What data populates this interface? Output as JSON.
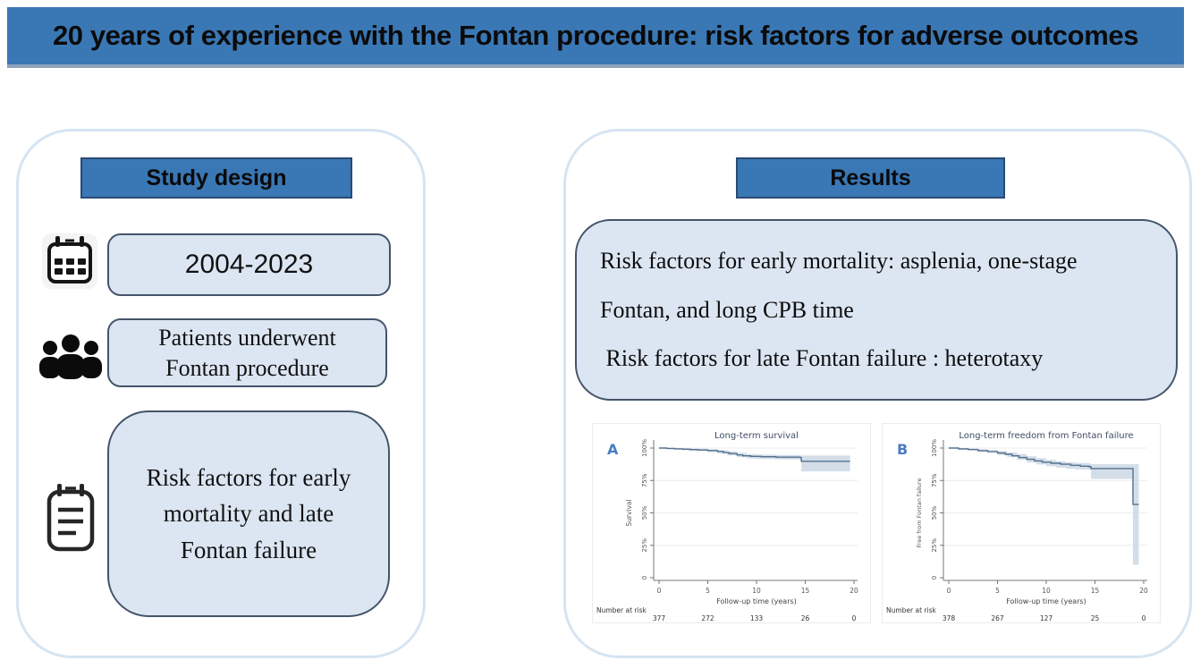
{
  "banner": {
    "title": "20 years of experience with the Fontan procedure: risk factors for adverse outcomes"
  },
  "panels": {
    "study_design": {
      "header": "Study design",
      "items": [
        {
          "icon": "calendar-icon",
          "text": "2004-2023"
        },
        {
          "icon": "people-icon",
          "text": "Patients underwent Fontan procedure"
        },
        {
          "icon": "clipboard-icon",
          "text": "Risk factors for early mortality and late Fontan failure"
        }
      ]
    },
    "results": {
      "header": "Results",
      "text_lines": [
        "Risk factors for early mortality: asplenia, one-stage",
        "Fontan, and long CPB time",
        " Risk factors for late Fontan failure : heterotaxy"
      ]
    }
  },
  "chart_data": [
    {
      "type": "line",
      "variant": "kaplan-meier-step",
      "panel_label": "A",
      "title": "Long-term survival",
      "xlabel": "Follow-up time (years)",
      "ylabel": "Survival",
      "xlim": [
        0,
        20
      ],
      "ylim": [
        0,
        105
      ],
      "xticks": [
        0,
        5,
        10,
        15,
        20
      ],
      "yticks": [
        {
          "v": 0,
          "label": "0"
        },
        {
          "v": 25,
          "label": "25%"
        },
        {
          "v": 50,
          "label": "50%"
        },
        {
          "v": 75,
          "label": "75%"
        },
        {
          "v": 100,
          "label": "100%"
        }
      ],
      "grid": "horizontal",
      "number_at_risk_label": "Number at risk",
      "number_at_risk": [
        377,
        272,
        133,
        26,
        0
      ],
      "survival_steps": [
        [
          0,
          100
        ],
        [
          0.8,
          99.7
        ],
        [
          1.6,
          99.4
        ],
        [
          2.4,
          99.1
        ],
        [
          3.2,
          98.8
        ],
        [
          4,
          98.5
        ],
        [
          5,
          98.1
        ],
        [
          6,
          97.4
        ],
        [
          6.6,
          96.5
        ],
        [
          7.2,
          95.7
        ],
        [
          8,
          94.7
        ],
        [
          8.6,
          94.0
        ],
        [
          9.4,
          93.6
        ],
        [
          10.5,
          93.3
        ],
        [
          12,
          93.0
        ],
        [
          14.4,
          92.8
        ],
        [
          14.6,
          89.8
        ],
        [
          19.6,
          89.8
        ]
      ],
      "ci_upper": [
        [
          0,
          100
        ],
        [
          2,
          100
        ],
        [
          3,
          99.6
        ],
        [
          5,
          99.0
        ],
        [
          6,
          98.4
        ],
        [
          7,
          97.4
        ],
        [
          8,
          96.4
        ],
        [
          9,
          95.4
        ],
        [
          10,
          94.9
        ],
        [
          12,
          94.7
        ],
        [
          14.4,
          94.5
        ],
        [
          14.6,
          94.2
        ],
        [
          19.6,
          94.2
        ]
      ],
      "ci_lower": [
        [
          0,
          100
        ],
        [
          1,
          99.0
        ],
        [
          3,
          97.8
        ],
        [
          5,
          96.8
        ],
        [
          6,
          95.8
        ],
        [
          7,
          94.3
        ],
        [
          8,
          92.9
        ],
        [
          9,
          92.0
        ],
        [
          10,
          91.5
        ],
        [
          12,
          91.2
        ],
        [
          14.4,
          91.0
        ],
        [
          14.6,
          82.0
        ],
        [
          19.6,
          82.0
        ]
      ]
    },
    {
      "type": "line",
      "variant": "kaplan-meier-step",
      "panel_label": "B",
      "title": "Long-term freedom from Fontan failure",
      "xlabel": "Follow-up time (years)",
      "ylabel": "Free from Fontan failure",
      "xlim": [
        0,
        20
      ],
      "ylim": [
        0,
        105
      ],
      "xticks": [
        0,
        5,
        10,
        15,
        20
      ],
      "yticks": [
        {
          "v": 0,
          "label": "0"
        },
        {
          "v": 25,
          "label": "25%"
        },
        {
          "v": 50,
          "label": "50%"
        },
        {
          "v": 75,
          "label": "75%"
        },
        {
          "v": 100,
          "label": "100%"
        }
      ],
      "grid": "horizontal",
      "number_at_risk_label": "Number at risk",
      "number_at_risk": [
        378,
        267,
        127,
        25,
        0
      ],
      "survival_steps": [
        [
          0,
          100
        ],
        [
          1,
          99.4
        ],
        [
          2,
          98.8
        ],
        [
          3,
          98.0
        ],
        [
          4,
          97.2
        ],
        [
          5,
          96.2
        ],
        [
          5.8,
          95.2
        ],
        [
          6.5,
          94.0
        ],
        [
          7.2,
          92.7
        ],
        [
          8,
          91.3
        ],
        [
          8.8,
          90.1
        ],
        [
          9.6,
          89.1
        ],
        [
          10.5,
          88.3
        ],
        [
          11.5,
          87.5
        ],
        [
          12.5,
          86.7
        ],
        [
          13.5,
          86.0
        ],
        [
          14.4,
          85.5
        ],
        [
          14.6,
          84.2
        ],
        [
          18.8,
          84.2
        ],
        [
          18.9,
          56.5
        ],
        [
          19.5,
          56.5
        ]
      ],
      "ci_upper": [
        [
          0,
          100
        ],
        [
          2,
          99.7
        ],
        [
          3,
          99.0
        ],
        [
          4,
          98.4
        ],
        [
          5,
          97.6
        ],
        [
          6,
          96.6
        ],
        [
          7,
          95.3
        ],
        [
          8,
          93.7
        ],
        [
          9,
          92.3
        ],
        [
          10,
          90.8
        ],
        [
          11,
          89.8
        ],
        [
          12,
          89.0
        ],
        [
          13,
          88.4
        ],
        [
          14.4,
          88.0
        ],
        [
          14.6,
          87.6
        ],
        [
          19.5,
          87.6
        ]
      ],
      "ci_lower": [
        [
          0,
          100
        ],
        [
          1,
          98.7
        ],
        [
          3,
          96.9
        ],
        [
          5,
          94.7
        ],
        [
          6,
          92.9
        ],
        [
          7,
          90.9
        ],
        [
          8,
          88.9
        ],
        [
          9,
          87.3
        ],
        [
          10,
          85.9
        ],
        [
          11,
          84.9
        ],
        [
          12,
          84.1
        ],
        [
          13,
          83.5
        ],
        [
          14.4,
          83.1
        ],
        [
          14.6,
          76.2
        ],
        [
          18.8,
          76.2
        ],
        [
          18.9,
          10.0
        ],
        [
          19.5,
          10.0
        ]
      ]
    }
  ],
  "colors": {
    "banner_bg": "#3a77b5",
    "banner_bottom_edge": "#8fa3bd",
    "header_bg": "#3a77b5",
    "header_border": "#2a4a73",
    "box_fill": "#dce6f2",
    "box_border": "#44546a",
    "panel_border": "#d6e4f2",
    "km_line": "#54708e",
    "km_band": "#c9d6e3",
    "panel_label_blue": "#4a7ec0",
    "chart_text": "#3d4e63"
  }
}
